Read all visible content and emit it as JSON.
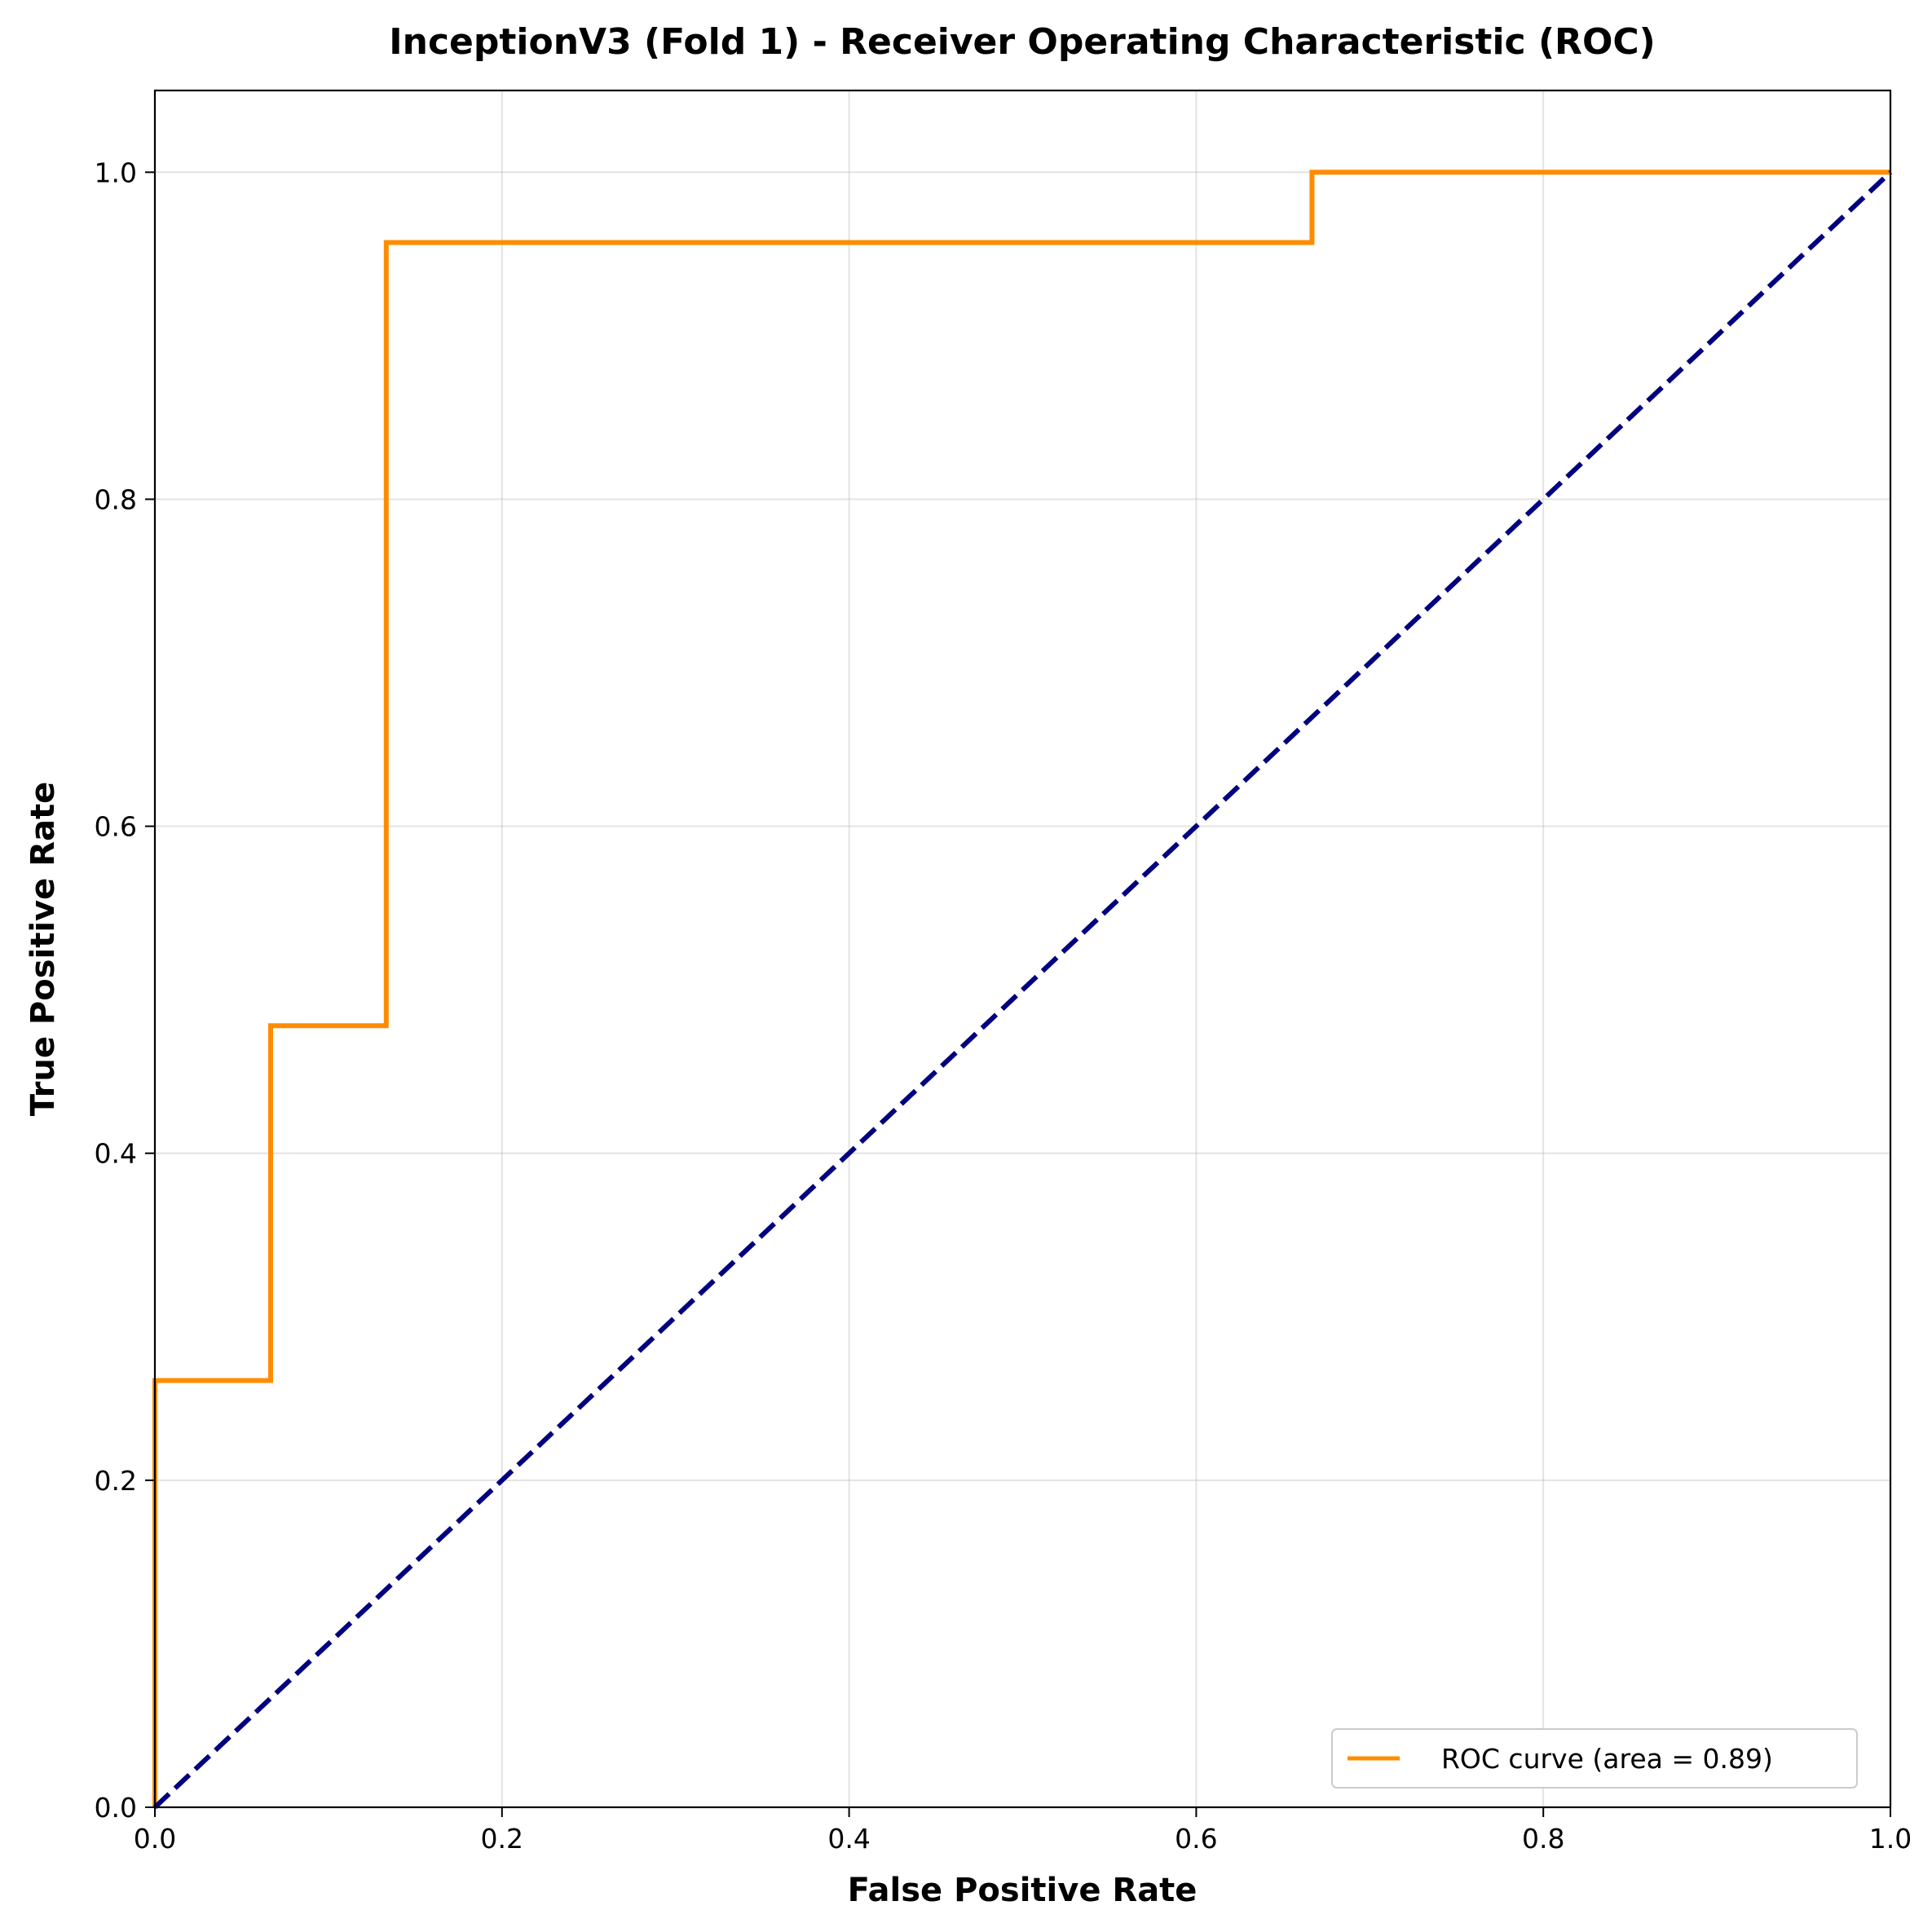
{
  "chart_data": {
    "type": "line",
    "title": "InceptionV3 (Fold 1) - Receiver Operating Characteristic (ROC)",
    "xlabel": "False Positive Rate",
    "ylabel": "True Positive Rate",
    "xlim": [
      0.0,
      1.05
    ],
    "ylim": [
      0.0,
      1.05
    ],
    "xlim_shown": [
      0.0,
      1.0
    ],
    "ylim_shown": [
      0.0,
      1.05
    ],
    "x_ticks": [
      0.0,
      0.2,
      0.4,
      0.6,
      0.8,
      1.0
    ],
    "x_tick_labels": [
      "0.0",
      "0.2",
      "0.4",
      "0.6",
      "0.8",
      "1.0"
    ],
    "y_ticks": [
      0.0,
      0.2,
      0.4,
      0.6,
      0.8,
      1.0
    ],
    "y_tick_labels": [
      "0.0",
      "0.2",
      "0.4",
      "0.6",
      "0.8",
      "1.0"
    ],
    "grid": true,
    "legend_position": "lower-right",
    "series": [
      {
        "name": "ROC curve (area = 0.89)",
        "color": "#ff8c00",
        "style": "step",
        "x": [
          0.0,
          0.0,
          0.0667,
          0.0667,
          0.1333,
          0.1333,
          0.6667,
          0.6667,
          1.0
        ],
        "y": [
          0.0,
          0.261,
          0.261,
          0.478,
          0.478,
          0.957,
          0.957,
          1.0,
          1.0
        ]
      },
      {
        "name": "",
        "color": "#000080",
        "style": "dashed",
        "x": [
          0.0,
          1.0
        ],
        "y": [
          0.0,
          1.0
        ]
      }
    ]
  }
}
